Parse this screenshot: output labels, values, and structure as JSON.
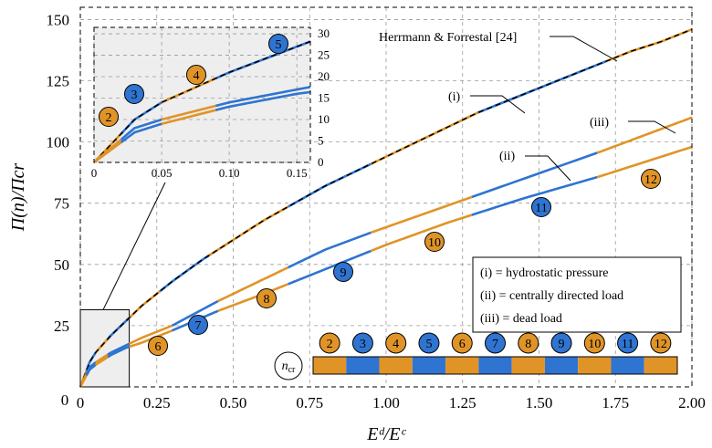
{
  "chart_data": {
    "type": "line",
    "xlabel": "Eᵈ/Eᶜ",
    "ylabel": "Π(n)/Πcr",
    "xlim": [
      0,
      2.0
    ],
    "ylim": [
      0,
      155
    ],
    "xticks": [
      "0",
      "0.25",
      "0.50",
      "0.75",
      "1.00",
      "1.25",
      "1.50",
      "1.75",
      "2.00"
    ],
    "yticks": [
      "25",
      "50",
      "75",
      "100",
      "125",
      "150"
    ],
    "grid": true,
    "colors": {
      "orange": "#E09428",
      "blue": "#2F74D0",
      "reference": "#000000",
      "inset_bg": "#EEEEEE"
    },
    "series": [
      {
        "name": "(i)",
        "reference_name": "Herrmann & Forrestal [24]",
        "x": [
          0,
          0.03,
          0.05,
          0.1,
          0.15,
          0.2,
          0.25,
          0.3,
          0.4,
          0.5,
          0.6,
          0.7,
          0.8,
          0.9,
          1.0,
          1.1,
          1.2,
          1.3,
          1.4,
          1.5,
          1.6,
          1.7,
          1.8,
          1.9,
          2.0
        ],
        "y": [
          0,
          10,
          14,
          21,
          27,
          33,
          38,
          43,
          52,
          60,
          68,
          75,
          82,
          88,
          94,
          100,
          106,
          112,
          117,
          122,
          127,
          132,
          137,
          141,
          146
        ],
        "mode_breaks": [
          0.02,
          0.05,
          0.09,
          0.16,
          0.26,
          0.42,
          0.68,
          0.95,
          1.3,
          1.72
        ]
      },
      {
        "name": "(ii)",
        "x": [
          0,
          0.03,
          0.05,
          0.1,
          0.15,
          0.2,
          0.3,
          0.45,
          0.6,
          0.8,
          0.95,
          1.2,
          1.45,
          1.7,
          2.0
        ],
        "y": [
          0,
          8,
          10,
          14,
          17,
          20,
          25,
          35,
          44,
          56,
          63,
          74,
          85,
          96,
          110
        ],
        "mode_breaks": [
          0.02,
          0.05,
          0.09,
          0.16,
          0.3,
          0.45,
          0.68,
          0.95,
          1.28,
          1.69
        ]
      },
      {
        "name": "(iii)",
        "x": [
          0,
          0.03,
          0.05,
          0.1,
          0.15,
          0.2,
          0.3,
          0.45,
          0.6,
          0.8,
          1.0,
          1.2,
          1.45,
          1.7,
          2.0
        ],
        "y": [
          0,
          7,
          9,
          13,
          16,
          18,
          23,
          31,
          38,
          48,
          58,
          67,
          77,
          86,
          98
        ],
        "mode_breaks": [
          0.02,
          0.05,
          0.09,
          0.16,
          0.3,
          0.45,
          0.68,
          0.95,
          1.28,
          1.69
        ]
      }
    ],
    "mode_labels": [
      {
        "n": "2",
        "color": "orange",
        "x": 0.06,
        "y": 101
      },
      {
        "n": "3",
        "color": "blue",
        "x": 0.1,
        "y": 110
      },
      {
        "n": "4",
        "color": "orange",
        "x": 0.15,
        "y": 117
      },
      {
        "n": "5",
        "color": "blue",
        "x": 0.28,
        "y": 131
      },
      {
        "n": "6",
        "color": "orange",
        "x": 0.31,
        "y": 17
      },
      {
        "n": "7",
        "color": "blue",
        "x": 0.53,
        "y": 25
      },
      {
        "n": "8",
        "color": "orange",
        "x": 0.77,
        "y": 35
      },
      {
        "n": "9",
        "color": "blue",
        "x": 1.0,
        "y": 47
      },
      {
        "n": "10",
        "color": "orange",
        "x": 1.31,
        "y": 60
      },
      {
        "n": "11",
        "color": "blue",
        "x": 1.64,
        "y": 80
      },
      {
        "n": "12",
        "color": "orange",
        "x": 2.05,
        "y": 86
      }
    ],
    "inset": {
      "xlim": [
        0,
        0.16
      ],
      "ylim": [
        0,
        31.5
      ],
      "xticks": [
        "0",
        "0.05",
        "0.10",
        "0.15"
      ],
      "yticks": [
        "0",
        "5",
        "10",
        "15",
        "20",
        "25",
        "30"
      ]
    },
    "legend": {
      "placement": "lower-right",
      "entries": [
        "(i) = hydrostatic pressure",
        "(ii) = centrally directed load",
        "(iii) = dead load"
      ]
    },
    "mode_strip": {
      "title": "n",
      "title_sub": "cr",
      "modes": [
        "2",
        "3",
        "4",
        "5",
        "6",
        "7",
        "8",
        "9",
        "10",
        "11",
        "12"
      ]
    }
  }
}
